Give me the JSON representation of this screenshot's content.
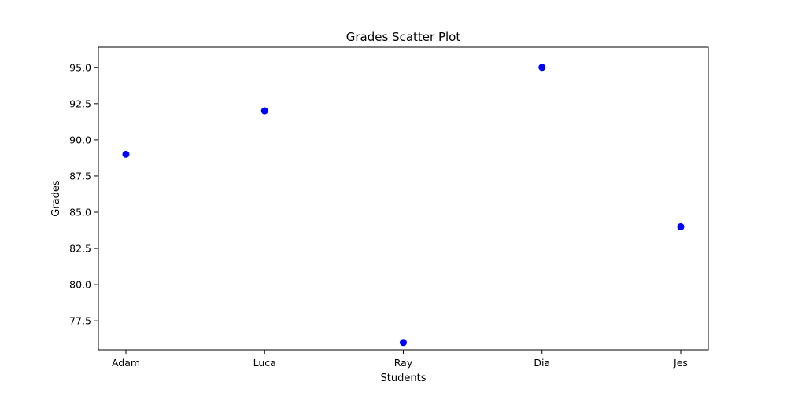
{
  "chart_data": {
    "type": "scatter",
    "title": "Grades Scatter Plot",
    "xlabel": "Students",
    "ylabel": "Grades",
    "categories": [
      "Adam",
      "Luca",
      "Ray",
      "Dia",
      "Jes"
    ],
    "values": [
      89,
      92,
      76,
      95,
      84
    ],
    "ylim": [
      75.5,
      96.4
    ],
    "yticks": [
      "77.5",
      "80.0",
      "82.5",
      "85.0",
      "87.5",
      "90.0",
      "92.5",
      "95.0"
    ],
    "grid": false,
    "marker_color": "#0000ff"
  }
}
